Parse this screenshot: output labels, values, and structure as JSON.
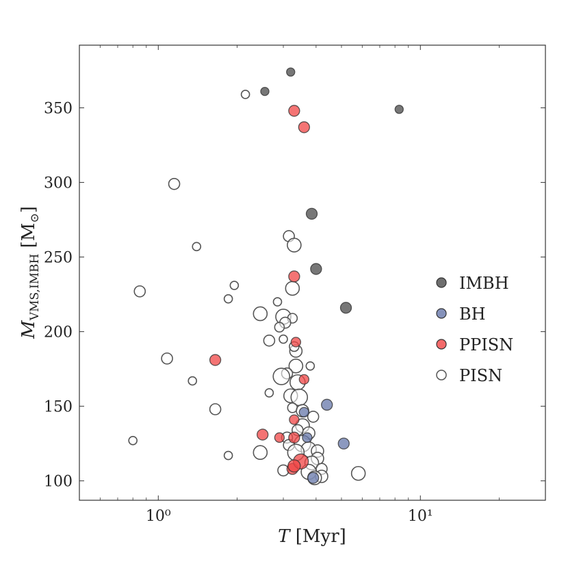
{
  "chart_data": {
    "type": "scatter",
    "xscale": "log",
    "xlim": [
      0.5,
      30
    ],
    "ylim": [
      87,
      392
    ],
    "xlabel": "T [Myr]",
    "ylabel": "M_VMS,IMBH [M⊙]",
    "x_ticks": [
      {
        "value": 1,
        "label": "10⁰"
      },
      {
        "value": 10,
        "label": "10¹"
      }
    ],
    "y_ticks": [
      100,
      150,
      200,
      250,
      300,
      350
    ],
    "grid": false,
    "legend_position": "right",
    "legend": [
      {
        "name": "IMBH",
        "color": "#4a4a4a",
        "fill": true
      },
      {
        "name": "BH",
        "color": "#6677aa",
        "fill": true
      },
      {
        "name": "PPISN",
        "color": "#f04545",
        "fill": true
      },
      {
        "name": "PISN",
        "color": "#555555",
        "fill": false
      }
    ],
    "series": [
      {
        "name": "IMBH",
        "color": "#4a4a4a",
        "filled": true,
        "points": [
          {
            "x": 3.2,
            "y": 374,
            "s": 6
          },
          {
            "x": 2.55,
            "y": 361,
            "s": 6
          },
          {
            "x": 8.3,
            "y": 349,
            "s": 6
          },
          {
            "x": 3.85,
            "y": 279,
            "s": 8
          },
          {
            "x": 4.0,
            "y": 242,
            "s": 8
          },
          {
            "x": 5.2,
            "y": 216,
            "s": 8
          }
        ]
      },
      {
        "name": "BH",
        "color": "#6677aa",
        "filled": true,
        "points": [
          {
            "x": 4.4,
            "y": 151,
            "s": 8
          },
          {
            "x": 5.1,
            "y": 125,
            "s": 8
          },
          {
            "x": 3.9,
            "y": 102,
            "s": 8
          },
          {
            "x": 3.7,
            "y": 129,
            "s": 7
          },
          {
            "x": 3.6,
            "y": 146,
            "s": 7
          }
        ]
      },
      {
        "name": "PPISN",
        "color": "#f04545",
        "filled": true,
        "points": [
          {
            "x": 3.3,
            "y": 348,
            "s": 8
          },
          {
            "x": 3.6,
            "y": 337,
            "s": 8
          },
          {
            "x": 3.3,
            "y": 237,
            "s": 8
          },
          {
            "x": 3.35,
            "y": 193,
            "s": 7
          },
          {
            "x": 1.65,
            "y": 181,
            "s": 8
          },
          {
            "x": 3.6,
            "y": 168,
            "s": 7
          },
          {
            "x": 3.3,
            "y": 141,
            "s": 7
          },
          {
            "x": 2.5,
            "y": 131,
            "s": 8
          },
          {
            "x": 2.9,
            "y": 129,
            "s": 7
          },
          {
            "x": 3.3,
            "y": 129,
            "s": 8
          },
          {
            "x": 3.25,
            "y": 108,
            "s": 8
          },
          {
            "x": 3.5,
            "y": 113,
            "s": 11
          },
          {
            "x": 3.3,
            "y": 110,
            "s": 9
          }
        ]
      },
      {
        "name": "PISN",
        "color": "#555555",
        "filled": false,
        "points": [
          {
            "x": 2.15,
            "y": 359,
            "s": 6
          },
          {
            "x": 1.15,
            "y": 299,
            "s": 8
          },
          {
            "x": 3.15,
            "y": 264,
            "s": 8
          },
          {
            "x": 3.3,
            "y": 258,
            "s": 10
          },
          {
            "x": 1.4,
            "y": 257,
            "s": 6
          },
          {
            "x": 0.85,
            "y": 227,
            "s": 8
          },
          {
            "x": 1.95,
            "y": 231,
            "s": 6
          },
          {
            "x": 3.25,
            "y": 229,
            "s": 10
          },
          {
            "x": 1.85,
            "y": 222,
            "s": 6
          },
          {
            "x": 2.85,
            "y": 220,
            "s": 6
          },
          {
            "x": 2.45,
            "y": 212,
            "s": 10
          },
          {
            "x": 3.0,
            "y": 210,
            "s": 11
          },
          {
            "x": 3.25,
            "y": 209,
            "s": 7
          },
          {
            "x": 3.05,
            "y": 206,
            "s": 8
          },
          {
            "x": 2.9,
            "y": 203,
            "s": 7
          },
          {
            "x": 3.0,
            "y": 195,
            "s": 6
          },
          {
            "x": 2.65,
            "y": 194,
            "s": 8
          },
          {
            "x": 3.35,
            "y": 187,
            "s": 9
          },
          {
            "x": 3.3,
            "y": 190,
            "s": 7
          },
          {
            "x": 3.8,
            "y": 177,
            "s": 6
          },
          {
            "x": 3.35,
            "y": 177,
            "s": 10
          },
          {
            "x": 1.08,
            "y": 182,
            "s": 8
          },
          {
            "x": 3.1,
            "y": 172,
            "s": 8
          },
          {
            "x": 2.95,
            "y": 170,
            "s": 12
          },
          {
            "x": 3.4,
            "y": 166,
            "s": 11
          },
          {
            "x": 1.35,
            "y": 167,
            "s": 6
          },
          {
            "x": 2.65,
            "y": 159,
            "s": 6
          },
          {
            "x": 3.2,
            "y": 157,
            "s": 10
          },
          {
            "x": 3.45,
            "y": 156,
            "s": 12
          },
          {
            "x": 3.25,
            "y": 149,
            "s": 7
          },
          {
            "x": 3.55,
            "y": 147,
            "s": 9
          },
          {
            "x": 1.65,
            "y": 148,
            "s": 8
          },
          {
            "x": 3.9,
            "y": 143,
            "s": 8
          },
          {
            "x": 3.55,
            "y": 137,
            "s": 10
          },
          {
            "x": 3.4,
            "y": 134,
            "s": 8
          },
          {
            "x": 3.75,
            "y": 132,
            "s": 9
          },
          {
            "x": 3.1,
            "y": 129,
            "s": 8
          },
          {
            "x": 0.8,
            "y": 127,
            "s": 6
          },
          {
            "x": 3.55,
            "y": 125,
            "s": 12
          },
          {
            "x": 3.15,
            "y": 124,
            "s": 8
          },
          {
            "x": 3.75,
            "y": 121,
            "s": 11
          },
          {
            "x": 4.05,
            "y": 120,
            "s": 9
          },
          {
            "x": 2.45,
            "y": 119,
            "s": 10
          },
          {
            "x": 3.35,
            "y": 119,
            "s": 12
          },
          {
            "x": 1.85,
            "y": 117,
            "s": 6
          },
          {
            "x": 4.05,
            "y": 115,
            "s": 9
          },
          {
            "x": 3.85,
            "y": 112,
            "s": 10
          },
          {
            "x": 4.2,
            "y": 108,
            "s": 8
          },
          {
            "x": 3.0,
            "y": 107,
            "s": 8
          },
          {
            "x": 3.75,
            "y": 106,
            "s": 11
          },
          {
            "x": 5.8,
            "y": 105,
            "s": 10
          },
          {
            "x": 4.2,
            "y": 103,
            "s": 9
          },
          {
            "x": 3.95,
            "y": 102,
            "s": 10
          }
        ]
      }
    ]
  }
}
